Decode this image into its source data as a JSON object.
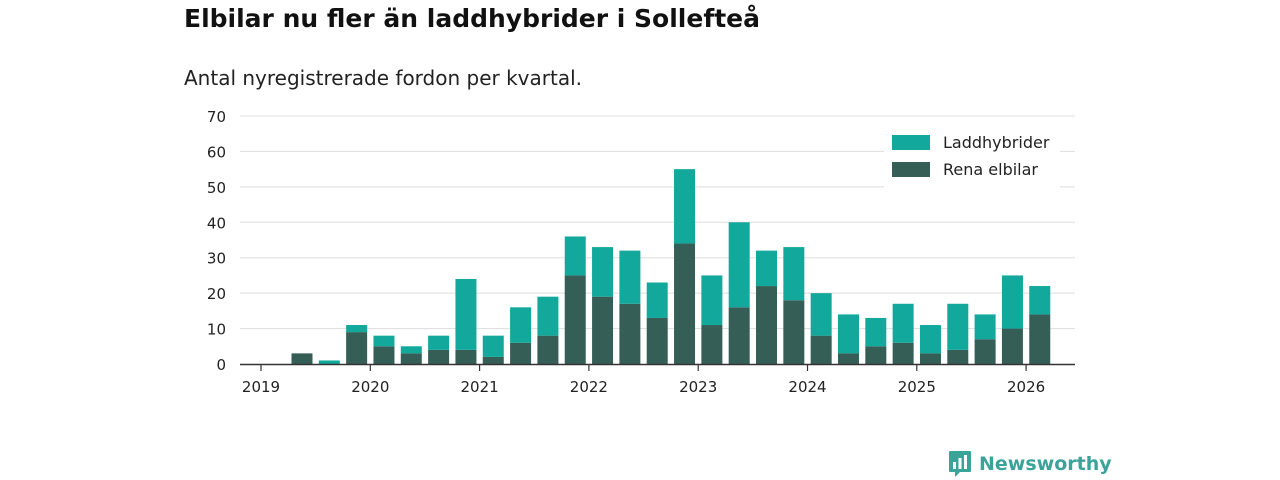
{
  "header": {
    "title": "Elbilar nu fler än laddhybrider i Sollefteå",
    "subtitle": "Antal nyregistrerade fordon per kvartal."
  },
  "brand": {
    "name": "Newsworthy",
    "icon": "newsworthy-logo-icon"
  },
  "colors": {
    "laddhybrider": "#12a89b",
    "elbilar": "#355e57",
    "grid": "#dddddd",
    "axis": "#333333",
    "text": "#222222"
  },
  "chart_data": {
    "type": "bar",
    "stacked": true,
    "title": "Elbilar nu fler än laddhybrider i Sollefteå",
    "subtitle": "Antal nyregistrerade fordon per kvartal.",
    "xlabel": "",
    "ylabel": "",
    "ylim": [
      0,
      70
    ],
    "yticks": [
      0,
      10,
      20,
      30,
      40,
      50,
      60,
      70
    ],
    "grid": true,
    "legend_position": "top-right",
    "x_tick_labels": [
      "2019",
      "2020",
      "2021",
      "2022",
      "2023",
      "2024",
      "2025",
      "2026"
    ],
    "categories": [
      "2019 Q2",
      "2019 Q3",
      "2019 Q4",
      "2020 Q1",
      "2020 Q2",
      "2020 Q3",
      "2020 Q4",
      "2021 Q1",
      "2021 Q2",
      "2021 Q3",
      "2021 Q4",
      "2022 Q1",
      "2022 Q2",
      "2022 Q3",
      "2022 Q4",
      "2023 Q1",
      "2023 Q2",
      "2023 Q3",
      "2023 Q4",
      "2024 Q1",
      "2024 Q2",
      "2024 Q3",
      "2024 Q4",
      "2025 Q1",
      "2025 Q2",
      "2025 Q3",
      "2025 Q4",
      "2026 Q1"
    ],
    "series": [
      {
        "name": "Rena elbilar",
        "color": "#355e57",
        "values": [
          3,
          0,
          9,
          5,
          3,
          4,
          4,
          2,
          6,
          8,
          25,
          19,
          17,
          13,
          34,
          11,
          16,
          22,
          18,
          8,
          3,
          5,
          6,
          3,
          4,
          7,
          10,
          14
        ]
      },
      {
        "name": "Laddhybrider",
        "color": "#12a89b",
        "values": [
          0,
          1,
          2,
          3,
          2,
          4,
          20,
          6,
          10,
          11,
          11,
          14,
          15,
          10,
          21,
          14,
          24,
          10,
          15,
          12,
          11,
          8,
          11,
          8,
          13,
          7,
          15,
          8
        ]
      }
    ],
    "legend": [
      "Laddhybrider",
      "Rena elbilar"
    ]
  }
}
